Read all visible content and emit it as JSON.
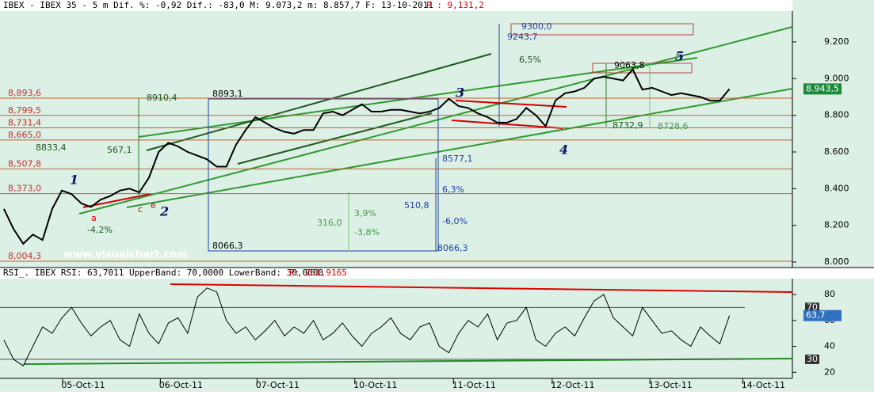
{
  "header": {
    "info": "IBEX - IBEX 35 -  5 m Dif. %: -0,92 Dif.: -83,0 M: 9.073,2 m: 8.857,7 F: 13-10-2011",
    "price": "P : 9,131,2"
  },
  "watermark": "www.visualchart.com",
  "chart_data": [
    {
      "type": "line",
      "ylim": [
        7970,
        9368
      ],
      "yticks": [
        {
          "value": 8000,
          "label": "8.000"
        },
        {
          "value": 8200,
          "label": "8.200"
        },
        {
          "value": 8400,
          "label": "8.400"
        },
        {
          "value": 8600,
          "label": "8.600"
        },
        {
          "value": 8800,
          "label": "8.800"
        },
        {
          "value": 9000,
          "label": "9.000"
        },
        {
          "value": 9200,
          "label": "9.200"
        }
      ],
      "xlim": [
        -0.4,
        81.5
      ],
      "xticks": [
        {
          "value": 8.2,
          "label": "05-Oct-11"
        },
        {
          "value": 18.3,
          "label": "06-Oct-11"
        },
        {
          "value": 28.3,
          "label": "07-Oct-11"
        },
        {
          "value": 38.4,
          "label": "10-Oct-11"
        },
        {
          "value": 48.6,
          "label": "11-Oct-11"
        },
        {
          "value": 58.8,
          "label": "12-Oct-11"
        },
        {
          "value": 68.9,
          "label": "13-Oct-11"
        },
        {
          "value": 78.5,
          "label": "14-Oct-11"
        }
      ],
      "series": [
        {
          "color": "#000000",
          "values": [
            8290,
            8180,
            8100,
            8150,
            8120,
            8290,
            8390,
            8370,
            8320,
            8300,
            8340,
            8360,
            8390,
            8400,
            8380,
            8460,
            8600,
            8650,
            8630,
            8600,
            8580,
            8560,
            8520,
            8520,
            8640,
            8720,
            8790,
            8760,
            8730,
            8710,
            8700,
            8720,
            8720,
            8810,
            8820,
            8800,
            8830,
            8860,
            8820,
            8820,
            8830,
            8830,
            8820,
            8810,
            8820,
            8840,
            8890,
            8850,
            8840,
            8810,
            8790,
            8760,
            8760,
            8780,
            8840,
            8800,
            8740,
            8880,
            8920,
            8930,
            8950,
            9000,
            9010,
            9000,
            8990,
            9050,
            8940,
            8950,
            8930,
            8910,
            8920,
            8910,
            8900,
            8880,
            8880,
            8943.5
          ]
        }
      ],
      "levels": [
        {
          "value": 8893.6,
          "label": "8,893,6"
        },
        {
          "value": 8799.5,
          "label": "8,799,5"
        },
        {
          "value": 8731.4,
          "label": "8,731,4"
        },
        {
          "value": 8665.0,
          "label": "8,665,0"
        },
        {
          "value": 8507.8,
          "label": "8,507,8"
        },
        {
          "value": 8373.0,
          "label": "8,373,0"
        },
        {
          "value": 8004.3,
          "label": "8,004,3"
        }
      ],
      "last_value": {
        "value": 8943.5,
        "label": "8.943,5"
      },
      "annotations": [
        "1",
        "2",
        "3",
        "4",
        "5",
        "a",
        "c",
        "e",
        "8910,4",
        "8893,1",
        "9300,0",
        "9243,7",
        "9063,8",
        "8577,1",
        "8066,3",
        "8066,3",
        "567,1",
        "510,8",
        "316,0",
        "6,3%",
        "-6,0%",
        "3,9%",
        "-3,8%",
        "6,5%",
        "8732,9",
        "8728,6",
        "8833,4",
        "-4,2%"
      ]
    },
    {
      "type": "line",
      "title": "RSI_. IBEX RSI: 63,7011 UpperBand: 70,0000 LowerBand: 30,0000",
      "price": "P: 251,9165",
      "ylim": [
        15.3,
        92.2
      ],
      "yticks": [
        20,
        40,
        60,
        80
      ],
      "series": [
        {
          "color": "#000000",
          "values": [
            45,
            30,
            25,
            40,
            55,
            50,
            62,
            70,
            58,
            48,
            55,
            60,
            45,
            40,
            65,
            50,
            42,
            58,
            62,
            50,
            78,
            85,
            82,
            60,
            50,
            55,
            45,
            52,
            60,
            48,
            55,
            50,
            60,
            45,
            50,
            58,
            48,
            40,
            50,
            55,
            62,
            50,
            45,
            55,
            58,
            40,
            35,
            50,
            60,
            55,
            65,
            45,
            58,
            60,
            70,
            45,
            40,
            50,
            55,
            48,
            62,
            75,
            80,
            62,
            55,
            48,
            70,
            60,
            50,
            52,
            45,
            40,
            55,
            48,
            42,
            63.7
          ]
        }
      ],
      "bands": [
        70,
        30
      ],
      "last_value": {
        "value": 63.7,
        "label": "63,7"
      }
    }
  ]
}
